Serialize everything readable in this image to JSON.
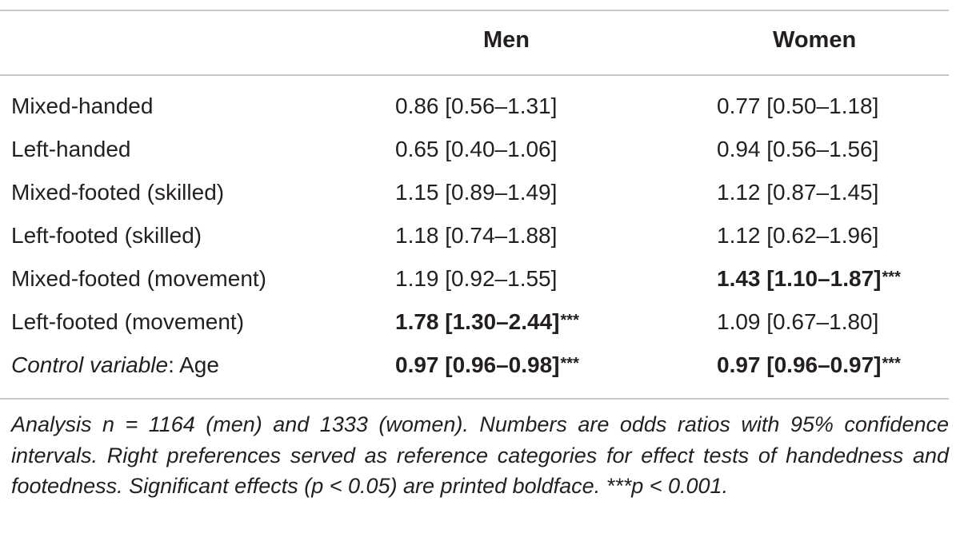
{
  "table": {
    "headers": {
      "label": "",
      "men": "Men",
      "women": "Women"
    },
    "rows": [
      {
        "label": "Mixed-handed",
        "label_prefix": "",
        "men": "0.86 [0.56–1.31]",
        "men_sig": "",
        "men_bold": false,
        "women": "0.77 [0.50–1.18]",
        "women_sig": "",
        "women_bold": false
      },
      {
        "label": "Left-handed",
        "label_prefix": "",
        "men": "0.65 [0.40–1.06]",
        "men_sig": "",
        "men_bold": false,
        "women": "0.94 [0.56–1.56]",
        "women_sig": "",
        "women_bold": false
      },
      {
        "label": "Mixed-footed (skilled)",
        "label_prefix": "",
        "men": "1.15 [0.89–1.49]",
        "men_sig": "",
        "men_bold": false,
        "women": "1.12 [0.87–1.45]",
        "women_sig": "",
        "women_bold": false
      },
      {
        "label": "Left-footed (skilled)",
        "label_prefix": "",
        "men": "1.18 [0.74–1.88]",
        "men_sig": "",
        "men_bold": false,
        "women": "1.12 [0.62–1.96]",
        "women_sig": "",
        "women_bold": false
      },
      {
        "label": "Mixed-footed (movement)",
        "label_prefix": "",
        "men": "1.19 [0.92–1.55]",
        "men_sig": "",
        "men_bold": false,
        "women": "1.43 [1.10–1.87]",
        "women_sig": "***",
        "women_bold": true
      },
      {
        "label": "Left-footed (movement)",
        "label_prefix": "",
        "men": "1.78 [1.30–2.44]",
        "men_sig": "***",
        "men_bold": true,
        "women": "1.09 [0.67–1.80]",
        "women_sig": "",
        "women_bold": false
      },
      {
        "label": ": Age",
        "label_prefix": "Control variable",
        "men": "0.97 [0.96–0.98]",
        "men_sig": "***",
        "men_bold": true,
        "women": "0.97 [0.96–0.97]",
        "women_sig": "***",
        "women_bold": true
      }
    ],
    "note": "Analysis n = 1164 (men) and 1333 (women). Numbers are odds ratios with 95% confidence intervals. Right preferences served as reference categories for effect tests of handedness and footedness. Significant effects (p < 0.05) are printed boldface. ***p < 0.001."
  }
}
